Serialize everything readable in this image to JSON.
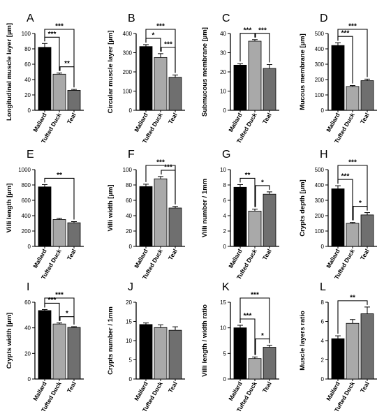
{
  "figure": {
    "panel_letters": [
      "A",
      "B",
      "C",
      "D",
      "E",
      "F",
      "G",
      "H",
      "I",
      "J",
      "K",
      "L"
    ]
  },
  "style": {
    "bar_colors": [
      "#000000",
      "#a9a9a9",
      "#6f6f6f"
    ],
    "axis_color": "#000000"
  },
  "chart_data": [
    {
      "panel": "A",
      "type": "bar",
      "categories": [
        "Mallard",
        "Tufted Duck",
        "Teal"
      ],
      "values": [
        82,
        47,
        26
      ],
      "errors": [
        5,
        1.5,
        1.2
      ],
      "ylabel": "Longitudinal muscle layer [µm]",
      "ylim": [
        0,
        100
      ],
      "yticks": [
        0,
        20,
        40,
        60,
        80,
        100
      ],
      "brackets": [
        {
          "from": 0,
          "to": 2,
          "label": "***",
          "level": 2
        },
        {
          "from": 0,
          "to": 1,
          "label": "***",
          "level": 1
        },
        {
          "from": 1,
          "to": 2,
          "label": "**",
          "level": 1
        }
      ]
    },
    {
      "panel": "B",
      "type": "bar",
      "categories": [
        "Mallard",
        "Tufted Duck",
        "Teal"
      ],
      "values": [
        332,
        275,
        172
      ],
      "errors": [
        10,
        20,
        12
      ],
      "ylabel": "Circular muscle layer [µm]",
      "ylim": [
        0,
        400
      ],
      "yticks": [
        0,
        100,
        200,
        300,
        400
      ],
      "brackets": [
        {
          "from": 0,
          "to": 2,
          "label": "***",
          "level": 2
        },
        {
          "from": 0,
          "to": 1,
          "label": "*",
          "level": 1
        },
        {
          "from": 1,
          "to": 2,
          "label": "***",
          "level": 1
        }
      ]
    },
    {
      "panel": "C",
      "type": "bar",
      "categories": [
        "Mallard",
        "Tufted Duck",
        "Teal"
      ],
      "values": [
        23.5,
        36,
        21.8
      ],
      "errors": [
        0.8,
        0.8,
        2
      ],
      "ylabel": "Submucous membrane [µm]",
      "ylim": [
        0,
        40
      ],
      "yticks": [
        0,
        10,
        20,
        30,
        40
      ],
      "brackets": [
        {
          "from": 0,
          "to": 1,
          "label": "***",
          "level": 1
        },
        {
          "from": 1,
          "to": 2,
          "label": "***",
          "level": 1
        }
      ]
    },
    {
      "panel": "D",
      "type": "bar",
      "categories": [
        "Mallard",
        "Tufted Duck",
        "Teal"
      ],
      "values": [
        422,
        155,
        193
      ],
      "errors": [
        18,
        6,
        10
      ],
      "ylabel": "Mucous membrane [µm]",
      "ylim": [
        0,
        500
      ],
      "yticks": [
        0,
        100,
        200,
        300,
        400,
        500
      ],
      "brackets": [
        {
          "from": 0,
          "to": 2,
          "label": "***",
          "level": 2
        },
        {
          "from": 0,
          "to": 1,
          "label": "***",
          "level": 1
        }
      ]
    },
    {
      "panel": "E",
      "type": "bar",
      "categories": [
        "Mallard",
        "Tufted Duck",
        "Teal"
      ],
      "values": [
        775,
        350,
        308
      ],
      "errors": [
        30,
        15,
        15
      ],
      "ylabel": "Villi length [µm]",
      "ylim": [
        0,
        1000
      ],
      "yticks": [
        0,
        200,
        400,
        600,
        800,
        1000
      ],
      "brackets": [
        {
          "from": 0,
          "to": 2,
          "label": "**",
          "level": 1
        }
      ]
    },
    {
      "panel": "F",
      "type": "bar",
      "categories": [
        "Mallard",
        "Tufted Duck",
        "Teal"
      ],
      "values": [
        78,
        88,
        50
      ],
      "errors": [
        3,
        3,
        2
      ],
      "ylabel": "Villi width [µm]",
      "ylim": [
        0,
        100
      ],
      "yticks": [
        0,
        20,
        40,
        60,
        80,
        100
      ],
      "brackets": [
        {
          "from": 0,
          "to": 2,
          "label": "***",
          "level": 2
        },
        {
          "from": 1,
          "to": 2,
          "label": "***",
          "level": 1
        }
      ]
    },
    {
      "panel": "G",
      "type": "bar",
      "categories": [
        "Mallard",
        "Tufted Duck",
        "Teal"
      ],
      "values": [
        7.7,
        4.6,
        6.8
      ],
      "errors": [
        0.35,
        0.25,
        0.3
      ],
      "ylabel": "Villi number / 1mm",
      "ylim": [
        0,
        10
      ],
      "yticks": [
        0,
        2,
        4,
        6,
        8,
        10
      ],
      "brackets": [
        {
          "from": 0,
          "to": 1,
          "label": "**",
          "level": 1
        },
        {
          "from": 1,
          "to": 2,
          "label": "*",
          "level": 1
        }
      ]
    },
    {
      "panel": "H",
      "type": "bar",
      "categories": [
        "Mallard",
        "Tufted Duck",
        "Teal"
      ],
      "values": [
        375,
        150,
        205
      ],
      "errors": [
        20,
        6,
        15
      ],
      "ylabel": "Crypts depth [µm]",
      "ylim": [
        0,
        500
      ],
      "yticks": [
        0,
        100,
        200,
        300,
        400,
        500
      ],
      "brackets": [
        {
          "from": 0,
          "to": 2,
          "label": "***",
          "level": 2
        },
        {
          "from": 0,
          "to": 1,
          "label": "***",
          "level": 1
        },
        {
          "from": 1,
          "to": 2,
          "label": "*",
          "level": 1
        }
      ]
    },
    {
      "panel": "I",
      "type": "bar",
      "categories": [
        "Mallard",
        "Tufted Duck",
        "Teal"
      ],
      "values": [
        53.5,
        43,
        40.3
      ],
      "errors": [
        0.8,
        0.8,
        0.6
      ],
      "ylabel": "Crypts width [µm]",
      "ylim": [
        0,
        60
      ],
      "yticks": [
        0,
        20,
        40,
        60
      ],
      "brackets": [
        {
          "from": 0,
          "to": 2,
          "label": "***",
          "level": 2
        },
        {
          "from": 0,
          "to": 1,
          "label": "***",
          "level": 1
        },
        {
          "from": 1,
          "to": 2,
          "label": "*",
          "level": 1
        }
      ]
    },
    {
      "panel": "J",
      "type": "bar",
      "categories": [
        "Mallard",
        "Tufted Duck",
        "Teal"
      ],
      "values": [
        14.2,
        13.4,
        12.7
      ],
      "errors": [
        0.4,
        0.7,
        0.9
      ],
      "ylabel": "Crypts number / 1mm",
      "ylim": [
        0,
        20
      ],
      "yticks": [
        0,
        5,
        10,
        15,
        20
      ],
      "brackets": []
    },
    {
      "panel": "K",
      "type": "bar",
      "categories": [
        "Mallard",
        "Tufted Duck",
        "Teal"
      ],
      "values": [
        10,
        4,
        6.2
      ],
      "errors": [
        0.5,
        0.3,
        0.4
      ],
      "ylabel": "Villi length / width ratio",
      "ylim": [
        0,
        15
      ],
      "yticks": [
        0,
        5,
        10,
        15
      ],
      "brackets": [
        {
          "from": 0,
          "to": 2,
          "label": "***",
          "level": 2
        },
        {
          "from": 0,
          "to": 1,
          "label": "***",
          "level": 1
        },
        {
          "from": 1,
          "to": 2,
          "label": "*",
          "level": 1
        }
      ]
    },
    {
      "panel": "L",
      "type": "bar",
      "categories": [
        "Mallard",
        "Tufted Duck",
        "Teal"
      ],
      "values": [
        4.2,
        5.8,
        6.8
      ],
      "errors": [
        0.3,
        0.4,
        0.7
      ],
      "ylabel": "Muscle layers ratio",
      "ylim": [
        0,
        8
      ],
      "yticks": [
        0,
        2,
        4,
        6,
        8
      ],
      "brackets": [
        {
          "from": 0,
          "to": 2,
          "label": "**",
          "level": 1
        }
      ]
    }
  ]
}
